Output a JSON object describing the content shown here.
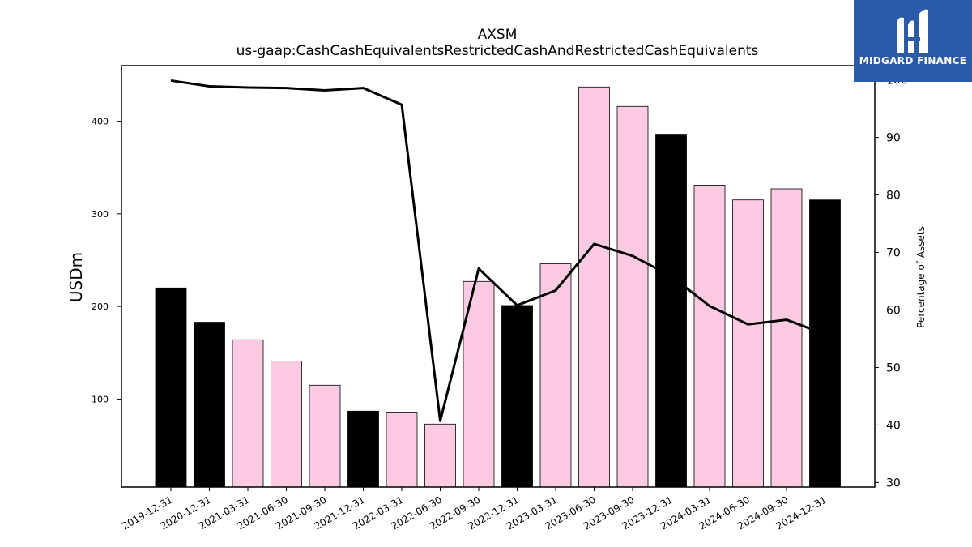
{
  "chart_data": {
    "type": "bar",
    "title": "AXSM",
    "subtitle": "us-gaap:CashCashEquivalentsRestrictedCashAndRestrictedCashEquivalents",
    "ylabel": "USDm",
    "ylabel_right": "Percentage of Assets",
    "categories": [
      "2019-12-31",
      "2020-12-31",
      "2021-03-31",
      "2021-06-30",
      "2021-09-30",
      "2021-12-31",
      "2022-03-31",
      "2022-06-30",
      "2022-09-30",
      "2022-12-31",
      "2023-03-31",
      "2023-06-30",
      "2023-09-30",
      "2023-12-31",
      "2024-03-31",
      "2024-06-30",
      "2024-09-30",
      "2024-12-31"
    ],
    "values": [
      220,
      183,
      164,
      141,
      115,
      87,
      85,
      73,
      227,
      201,
      246,
      437,
      416,
      386,
      331,
      315,
      327,
      315
    ],
    "bar_kind": [
      "annual",
      "annual",
      "quarter",
      "quarter",
      "quarter",
      "annual",
      "quarter",
      "quarter",
      "quarter",
      "annual",
      "quarter",
      "quarter",
      "quarter",
      "annual",
      "quarter",
      "quarter",
      "quarter",
      "annual"
    ],
    "percentage_of_assets": [
      99.9,
      98.9,
      98.7,
      98.6,
      98.2,
      98.6,
      95.7,
      40.7,
      67.2,
      60.8,
      63.4,
      71.5,
      69.4,
      65.9,
      60.7,
      57.5,
      58.3,
      55.8
    ],
    "ylim": [
      5,
      460
    ],
    "ylim_right": [
      29.2,
      102.5
    ],
    "yticks": [
      100,
      200,
      300,
      400
    ],
    "yticks_right": [
      30,
      40,
      50,
      60,
      70,
      80,
      90,
      100
    ],
    "colors": {
      "annual": "#000000",
      "quarter": "#fccbe3",
      "line": "#000000"
    },
    "grid": false,
    "legend": "none"
  },
  "logo": {
    "text": "MIDGARD FINANCE",
    "bg": "#2a5aa8"
  }
}
